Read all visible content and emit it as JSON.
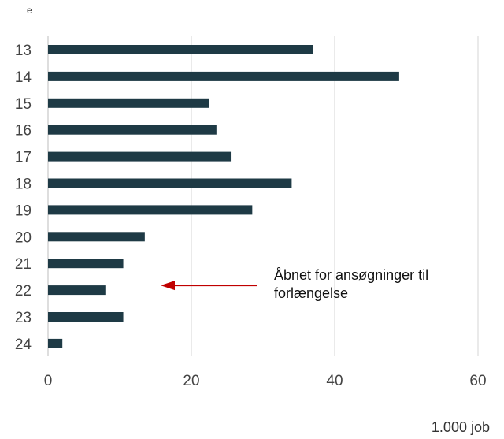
{
  "corner_label": "e",
  "unit_label": "1.000 job",
  "annotation": {
    "line1": "Åbnet for ansøgninger til",
    "line2": "forlængelse",
    "target_category": "22",
    "arrow_color": "#c00000"
  },
  "chart_data": {
    "type": "bar",
    "orientation": "horizontal",
    "categories": [
      "13",
      "14",
      "15",
      "16",
      "17",
      "18",
      "19",
      "20",
      "21",
      "22",
      "23",
      "24"
    ],
    "values": [
      37,
      49,
      22.5,
      23.5,
      25.5,
      34,
      28.5,
      13.5,
      10.5,
      8,
      10.5,
      2
    ],
    "xlim": [
      0,
      60
    ],
    "xticks": [
      0,
      20,
      40,
      60
    ],
    "bar_color": "#1e3a45",
    "grid": "vertical"
  }
}
